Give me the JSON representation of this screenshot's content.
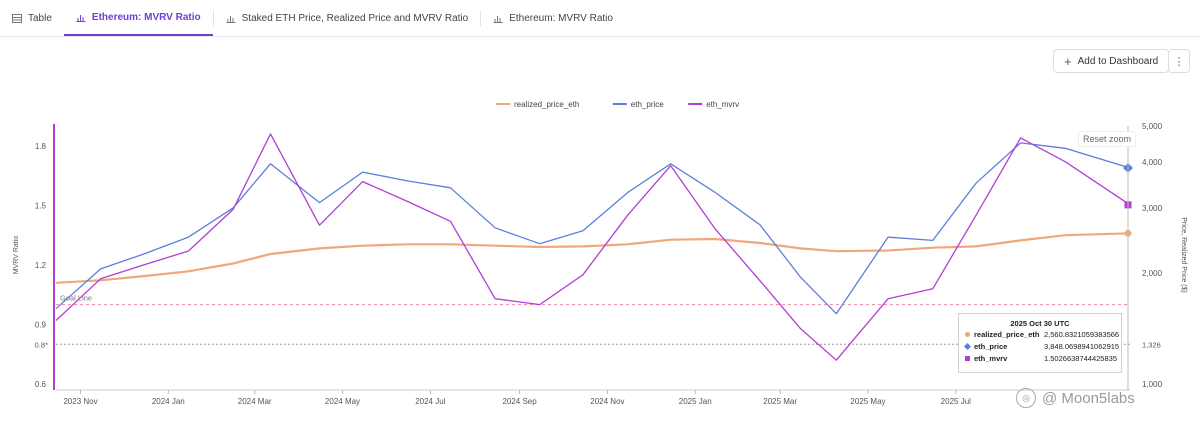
{
  "tabs": [
    {
      "label": "Table",
      "icon": "table-icon",
      "active": false
    },
    {
      "label": "Ethereum: MVRV Ratio",
      "icon": "chart-icon",
      "active": true
    },
    {
      "label": "Staked ETH Price, Realized Price and MVRV Ratio",
      "icon": "chart-icon",
      "active": false
    },
    {
      "label": "Ethereum: MVRV Ratio",
      "icon": "chart-icon",
      "active": false
    }
  ],
  "toolbar": {
    "add_dashboard_label": "Add to Dashboard",
    "add_icon": "plus-icon",
    "more_icon": "more-vertical-icon"
  },
  "reset_zoom_label": "Reset zoom",
  "chart_data": {
    "type": "line",
    "left_axis_label": "MVRV Ratio",
    "right_axis_label": "Price, Realized Price ($)",
    "left_ticks": [
      "1.8",
      "1.5",
      "1.2",
      "0.9",
      "0.6"
    ],
    "right_ticks": [
      "5,000",
      "4,000",
      "3,000",
      "2,000",
      "1,000"
    ],
    "right_scale": "log",
    "x_ticks": [
      "2023 Nov",
      "2024 Jan",
      "2024 Mar",
      "2024 May",
      "2024 Jul",
      "2024 Sep",
      "2024 Nov",
      "2025 Jan",
      "2025 Mar",
      "2025 May",
      "2025 Jul"
    ],
    "ylim_left": [
      0.6,
      1.9
    ],
    "ylim_right": [
      1000,
      5000
    ],
    "goal_line_label": "Goal Line",
    "goal_line_value": 1.0,
    "ref_line_left_label": "0.8*",
    "ref_line_left_value": 0.8,
    "ref_line_right_label": "1,326",
    "legend": [
      "realized_price_eth",
      "eth_price",
      "eth_mvrv"
    ],
    "legend_position": "top",
    "colors": {
      "realized_price_eth": "#f0a878",
      "eth_price": "#5b7fdb",
      "eth_mvrv": "#b23ed6"
    },
    "x": [
      "2023-10-15",
      "2023-11-15",
      "2023-12-15",
      "2024-01-15",
      "2024-02-15",
      "2024-03-12",
      "2024-04-15",
      "2024-05-15",
      "2024-06-15",
      "2024-07-15",
      "2024-08-15",
      "2024-09-15",
      "2024-10-15",
      "2024-11-15",
      "2024-12-15",
      "2025-01-15",
      "2025-02-15",
      "2025-03-15",
      "2025-04-09",
      "2025-05-15",
      "2025-06-15",
      "2025-07-15",
      "2025-08-15",
      "2025-09-15",
      "2025-10-30"
    ],
    "series": [
      {
        "name": "realized_price_eth",
        "axis": "right",
        "values": [
          1880,
          1910,
          1960,
          2020,
          2120,
          2250,
          2330,
          2370,
          2390,
          2390,
          2370,
          2350,
          2360,
          2390,
          2460,
          2470,
          2410,
          2330,
          2290,
          2300,
          2340,
          2360,
          2450,
          2530,
          2560
        ]
      },
      {
        "name": "eth_price",
        "axis": "right",
        "values": [
          1600,
          2050,
          2250,
          2500,
          3000,
          3950,
          3100,
          3750,
          3550,
          3400,
          2650,
          2400,
          2600,
          3300,
          3950,
          3300,
          2700,
          1950,
          1550,
          2500,
          2450,
          3500,
          4500,
          4350,
          3848
        ]
      },
      {
        "name": "eth_mvrv",
        "axis": "left",
        "values": [
          0.92,
          1.13,
          1.2,
          1.27,
          1.48,
          1.86,
          1.4,
          1.62,
          1.52,
          1.42,
          1.03,
          1.0,
          1.15,
          1.45,
          1.7,
          1.38,
          1.12,
          0.88,
          0.72,
          1.03,
          1.08,
          1.45,
          1.84,
          1.72,
          1.5026
        ]
      }
    ],
    "tooltip": {
      "title": "2025 Oct 30 UTC",
      "rows": [
        {
          "name": "realized_price_eth",
          "value": "2,560.8321059383566"
        },
        {
          "name": "eth_price",
          "value": "3,848.0698941062915"
        },
        {
          "name": "eth_mvrv",
          "value": "1.5026638744425835"
        }
      ]
    }
  },
  "watermark_text": "@ Moon5labs"
}
